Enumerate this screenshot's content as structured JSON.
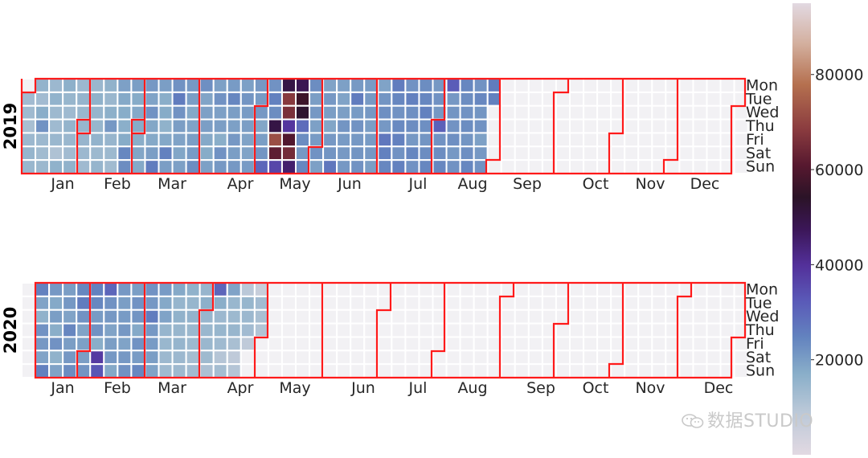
{
  "chart_data": {
    "type": "heatmap",
    "description_free": true,
    "years": [
      "2019",
      "2020"
    ],
    "weekday_labels": [
      "Mon",
      "Tue",
      "Wed",
      "Thu",
      "Fri",
      "Sat",
      "Sun"
    ],
    "month_labels": [
      "Jan",
      "Feb",
      "Mar",
      "Apr",
      "May",
      "Jun",
      "Jul",
      "Aug",
      "Sep",
      "Oct",
      "Nov",
      "Dec"
    ],
    "colorbar": {
      "min": 0,
      "max": 95000,
      "ticks": [
        20000,
        40000,
        60000,
        80000
      ],
      "colormap": "twilight_shifted"
    },
    "empty_color": "#f2f1f4",
    "grid_line_color": "#ffffff",
    "month_border_color": "#ff1a1a",
    "values_2019": [
      [
        5,
        13000,
        13500,
        12000,
        14000,
        15000,
        14500
      ],
      [
        15500,
        13000,
        17000,
        22000,
        14000,
        13200,
        14200
      ],
      [
        14000,
        15600,
        13800,
        13500,
        14400,
        11000,
        16000
      ],
      [
        16500,
        14800,
        13500,
        15400,
        14300,
        13000,
        15800
      ],
      [
        14000,
        15200,
        14500,
        14800,
        14900,
        14000,
        13400
      ],
      [
        14300,
        16000,
        15000,
        14800,
        15600,
        13900,
        15000
      ],
      [
        15800,
        14400,
        16400,
        21000,
        14900,
        13900,
        13300
      ],
      [
        19500,
        18000,
        17300,
        16800,
        17500,
        24000,
        23000
      ],
      [
        20000,
        17500,
        18000,
        17500,
        17000,
        18500,
        18000
      ],
      [
        21000,
        19000,
        22000,
        18400,
        18000,
        20000,
        26000
      ],
      [
        20000,
        17000,
        17500,
        16000,
        18200,
        25000,
        20000
      ],
      [
        22000,
        26000,
        22000,
        20000,
        19000,
        18500,
        19500
      ],
      [
        21000,
        20000,
        18000,
        19000,
        20000,
        20500,
        23000
      ],
      [
        22500,
        18800,
        19500,
        20000,
        18000,
        17500,
        19500
      ],
      [
        19500,
        22000,
        19500,
        20000,
        17000,
        22000,
        21000
      ],
      [
        20500,
        24000,
        20000,
        19500,
        21000,
        20000,
        21000
      ],
      [
        19500,
        21500,
        20500,
        20000,
        19000,
        19000,
        20500
      ],
      [
        21000,
        20500,
        21000,
        18500,
        20000,
        21500,
        30000
      ],
      [
        22000,
        25000,
        23000,
        50000,
        72000,
        62000,
        36000
      ],
      [
        50000,
        68000,
        66000,
        39000,
        60000,
        65000,
        45000
      ],
      [
        48000,
        57000,
        53000,
        29000,
        23000,
        21000,
        24000
      ],
      [
        23000,
        20000,
        21000,
        19500,
        20500,
        22000,
        19500
      ],
      [
        19000,
        21000,
        20000,
        18500,
        21000,
        21500,
        27000
      ],
      [
        19500,
        19000,
        19800,
        21500,
        20500,
        20800,
        21000
      ],
      [
        20800,
        26000,
        20500,
        21800,
        21000,
        21500,
        22000
      ],
      [
        20500,
        20800,
        21000,
        20000,
        20500,
        21000,
        20000
      ],
      [
        19000,
        21500,
        22500,
        21000,
        27000,
        25000,
        24000
      ],
      [
        26000,
        24000,
        22000,
        23500,
        25000,
        22000,
        25000
      ],
      [
        22000,
        25000,
        22500,
        23000,
        21000,
        24000,
        22000
      ],
      [
        23000,
        24000,
        25000,
        22500,
        21500,
        23000,
        24000
      ],
      [
        21000,
        22000,
        21000,
        31000,
        22000,
        23000,
        24000
      ],
      [
        32000,
        21000,
        21500,
        21800,
        22500,
        21000,
        22000
      ],
      [
        24000,
        23000,
        22000,
        23000,
        21500,
        22500,
        24000
      ],
      [
        22000,
        24000,
        21500,
        22000,
        19500,
        21000,
        22000
      ],
      [
        26000,
        25000,
        5,
        5,
        5,
        5,
        5
      ]
    ],
    "values_2020": [
      [
        5,
        5,
        5,
        5,
        5,
        5,
        5
      ],
      [
        25000,
        19000,
        16000,
        22000,
        21000,
        19000,
        25000
      ],
      [
        21000,
        18000,
        20000,
        17000,
        22000,
        16000,
        19000
      ],
      [
        20000,
        21000,
        19000,
        24000,
        20000,
        21000,
        23000
      ],
      [
        24000,
        26000,
        22000,
        19000,
        19500,
        20000,
        21500
      ],
      [
        25000,
        24000,
        20500,
        22000,
        17000,
        38000,
        33000
      ],
      [
        30000,
        22000,
        21000,
        19000,
        20000,
        21000,
        18000
      ],
      [
        21000,
        20000,
        20500,
        21000,
        19000,
        21000,
        22000
      ],
      [
        20000,
        22000,
        21500,
        18000,
        22000,
        20500,
        24000
      ],
      [
        22000,
        21000,
        26000,
        21000,
        20500,
        20000,
        19000
      ],
      [
        20500,
        18000,
        19000,
        15000,
        14500,
        14000,
        13500
      ],
      [
        18000,
        15000,
        15800,
        14700,
        15000,
        14000,
        13700
      ],
      [
        16000,
        14800,
        15500,
        14200,
        13800,
        12500,
        13000
      ],
      [
        14900,
        16500,
        14600,
        14500,
        14400,
        13600,
        11500
      ],
      [
        30000,
        17000,
        14000,
        14800,
        13500,
        10000,
        12500
      ],
      [
        19000,
        14500,
        13800,
        14700,
        12000,
        8000,
        10000
      ],
      [
        9000,
        14800,
        14000,
        13000,
        8000,
        5,
        5
      ],
      [
        6000,
        13000,
        12000,
        10500,
        5,
        5,
        5
      ],
      [
        5,
        5,
        5,
        5,
        5,
        5,
        5
      ]
    ]
  },
  "watermark": {
    "text": "数据STUDIO"
  }
}
